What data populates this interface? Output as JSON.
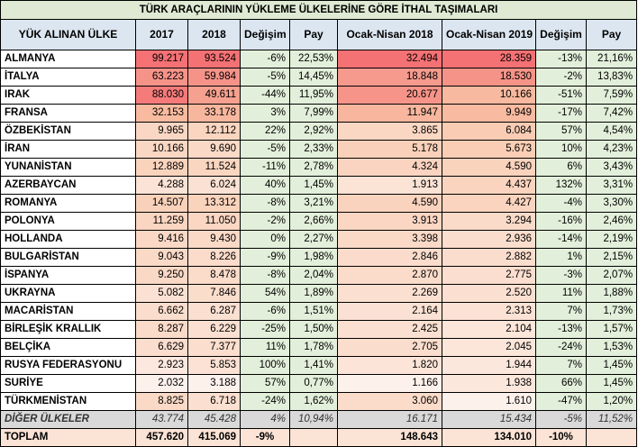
{
  "title": "TÜRK ARAÇLARININ YÜKLEME ÜLKELERİNE GÖRE İTHAL TAŞIMALARI",
  "headers": [
    "YÜK ALINAN ÜLKE",
    "2017",
    "2018",
    "Değişim",
    "Pay",
    "Ocak-Nisan 2018",
    "Ocak-Nisan 2019",
    "Değişim",
    "Pay"
  ],
  "heat_colors": {
    "low": "#fdf1ec",
    "mid": "#f8c4a6",
    "high": "#f47174"
  },
  "rows": [
    {
      "country": "ALMANYA",
      "y2017": "99.217",
      "y2018": "93.524",
      "chg": "-6%",
      "pay": "22,53%",
      "q2018": "32.494",
      "q2019": "28.359",
      "qchg": "-13%",
      "qpay": "21,16%"
    },
    {
      "country": "İTALYA",
      "y2017": "63.223",
      "y2018": "59.984",
      "chg": "-5%",
      "pay": "14,45%",
      "q2018": "18.848",
      "q2019": "18.530",
      "qchg": "-2%",
      "qpay": "13,83%"
    },
    {
      "country": "IRAK",
      "y2017": "88.030",
      "y2018": "49.611",
      "chg": "-44%",
      "pay": "11,95%",
      "q2018": "20.677",
      "q2019": "10.166",
      "qchg": "-51%",
      "qpay": "7,59%"
    },
    {
      "country": "FRANSA",
      "y2017": "32.153",
      "y2018": "33.178",
      "chg": "3%",
      "pay": "7,99%",
      "q2018": "11.947",
      "q2019": "9.949",
      "qchg": "-17%",
      "qpay": "7,42%"
    },
    {
      "country": "ÖZBEKİSTAN",
      "y2017": "9.965",
      "y2018": "12.112",
      "chg": "22%",
      "pay": "2,92%",
      "q2018": "3.865",
      "q2019": "6.084",
      "qchg": "57%",
      "qpay": "4,54%"
    },
    {
      "country": "İRAN",
      "y2017": "10.166",
      "y2018": "9.690",
      "chg": "-5%",
      "pay": "2,33%",
      "q2018": "5.178",
      "q2019": "5.673",
      "qchg": "10%",
      "qpay": "4,23%"
    },
    {
      "country": "YUNANİSTAN",
      "y2017": "12.889",
      "y2018": "11.524",
      "chg": "-11%",
      "pay": "2,78%",
      "q2018": "4.324",
      "q2019": "4.590",
      "qchg": "6%",
      "qpay": "3,43%"
    },
    {
      "country": "AZERBAYCAN",
      "y2017": "4.288",
      "y2018": "6.024",
      "chg": "40%",
      "pay": "1,45%",
      "q2018": "1.913",
      "q2019": "4.437",
      "qchg": "132%",
      "qpay": "3,31%"
    },
    {
      "country": "ROMANYA",
      "y2017": "14.507",
      "y2018": "13.312",
      "chg": "-8%",
      "pay": "3,21%",
      "q2018": "4.590",
      "q2019": "4.427",
      "qchg": "-4%",
      "qpay": "3,30%"
    },
    {
      "country": "POLONYA",
      "y2017": "11.259",
      "y2018": "11.050",
      "chg": "-2%",
      "pay": "2,66%",
      "q2018": "3.913",
      "q2019": "3.294",
      "qchg": "-16%",
      "qpay": "2,46%"
    },
    {
      "country": "HOLLANDA",
      "y2017": "9.416",
      "y2018": "9.430",
      "chg": "0%",
      "pay": "2,27%",
      "q2018": "3.398",
      "q2019": "2.936",
      "qchg": "-14%",
      "qpay": "2,19%"
    },
    {
      "country": "BULGARİSTAN",
      "y2017": "9.043",
      "y2018": "8.226",
      "chg": "-9%",
      "pay": "1,98%",
      "q2018": "2.846",
      "q2019": "2.882",
      "qchg": "1%",
      "qpay": "2,15%"
    },
    {
      "country": "İSPANYA",
      "y2017": "9.250",
      "y2018": "8.478",
      "chg": "-8%",
      "pay": "2,04%",
      "q2018": "2.870",
      "q2019": "2.775",
      "qchg": "-3%",
      "qpay": "2,07%"
    },
    {
      "country": "UKRAYNA",
      "y2017": "5.082",
      "y2018": "7.846",
      "chg": "54%",
      "pay": "1,89%",
      "q2018": "2.269",
      "q2019": "2.520",
      "qchg": "11%",
      "qpay": "1,88%"
    },
    {
      "country": "MACARİSTAN",
      "y2017": "6.662",
      "y2018": "6.287",
      "chg": "-6%",
      "pay": "1,51%",
      "q2018": "2.164",
      "q2019": "2.313",
      "qchg": "7%",
      "qpay": "1,73%"
    },
    {
      "country": "BİRLEŞİK KRALLIK",
      "y2017": "8.287",
      "y2018": "6.229",
      "chg": "-25%",
      "pay": "1,50%",
      "q2018": "2.425",
      "q2019": "2.104",
      "qchg": "-13%",
      "qpay": "1,57%"
    },
    {
      "country": "BELÇİKA",
      "y2017": "6.629",
      "y2018": "7.377",
      "chg": "11%",
      "pay": "1,78%",
      "q2018": "2.705",
      "q2019": "2.045",
      "qchg": "-24%",
      "qpay": "1,53%"
    },
    {
      "country": "RUSYA FEDERASYONU",
      "y2017": "2.923",
      "y2018": "5.853",
      "chg": "100%",
      "pay": "1,41%",
      "q2018": "1.820",
      "q2019": "1.944",
      "qchg": "7%",
      "qpay": "1,45%"
    },
    {
      "country": "SURİYE",
      "y2017": "2.032",
      "y2018": "3.188",
      "chg": "57%",
      "pay": "0,77%",
      "q2018": "1.166",
      "q2019": "1.938",
      "qchg": "66%",
      "qpay": "1,45%"
    },
    {
      "country": "TÜRKMENİSTAN",
      "y2017": "8.825",
      "y2018": "6.718",
      "chg": "-24%",
      "pay": "1,62%",
      "q2018": "3.060",
      "q2019": "1.610",
      "qchg": "-47%",
      "qpay": "1,20%"
    }
  ],
  "other": {
    "country": "DİĞER ÜLKELER",
    "y2017": "43.774",
    "y2018": "45.428",
    "chg": "4%",
    "pay": "10,94%",
    "q2018": "16.171",
    "q2019": "15.434",
    "qchg": "-5%",
    "qpay": "11,52%"
  },
  "total": {
    "country": "TOPLAM",
    "y2017": "457.620",
    "y2018": "415.069",
    "chg": "-9%",
    "pay": "",
    "q2018": "148.643",
    "q2019": "134.010",
    "qchg": "-10%",
    "qpay": ""
  }
}
